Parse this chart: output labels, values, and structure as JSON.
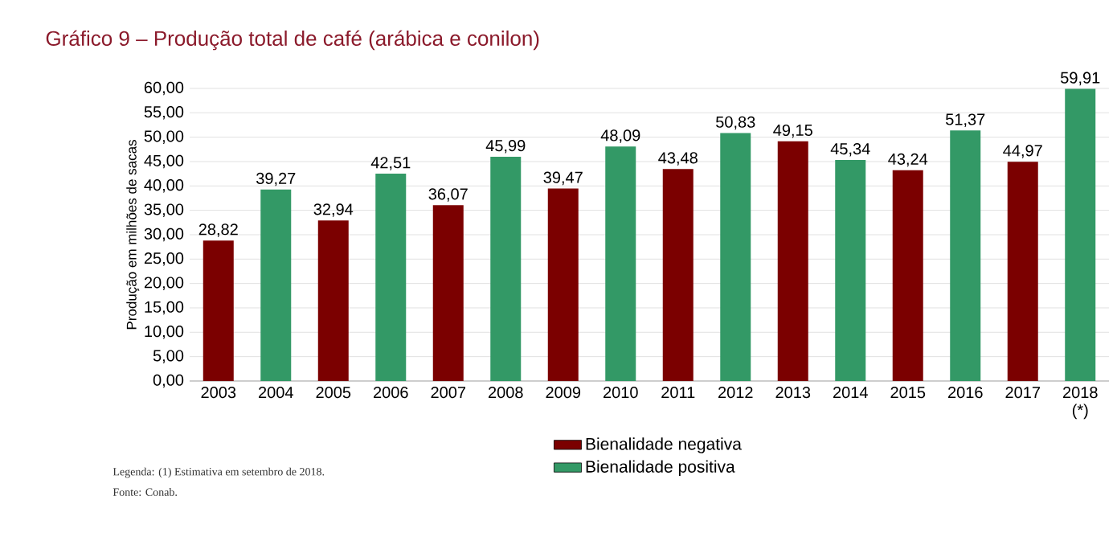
{
  "chart_data": {
    "type": "bar",
    "title": "Gráfico 9 – Produção total de café (arábica e conilon)",
    "ylabel": "Produção em milhões de sacas",
    "categories": [
      "2003",
      "2004",
      "2005",
      "2006",
      "2007",
      "2008",
      "2009",
      "2010",
      "2011",
      "2012",
      "2013",
      "2014",
      "2015",
      "2016",
      "2017",
      "2018 (*)"
    ],
    "series": [
      {
        "name": "Bienalidade negativa",
        "color": "#7b0000",
        "values": [
          28.82,
          null,
          32.94,
          null,
          36.07,
          null,
          39.47,
          null,
          43.48,
          null,
          49.15,
          null,
          43.24,
          null,
          44.97,
          null
        ],
        "value_labels": [
          "28,82",
          null,
          "32,94",
          null,
          "36,07",
          null,
          "39,47",
          null,
          "43,48",
          null,
          "49,15",
          null,
          "43,24",
          null,
          "44,97",
          null
        ]
      },
      {
        "name": "Bienalidade positiva",
        "color": "#339966",
        "values": [
          null,
          39.27,
          null,
          42.51,
          null,
          45.99,
          null,
          48.09,
          null,
          50.83,
          null,
          45.34,
          null,
          51.37,
          null,
          59.91
        ],
        "value_labels": [
          null,
          "39,27",
          null,
          "42,51",
          null,
          "45,99",
          null,
          "48,09",
          null,
          "50,83",
          null,
          "45,34",
          null,
          "51,37",
          null,
          "59,91"
        ]
      }
    ],
    "ylim": [
      0,
      60
    ],
    "yticks": [
      {
        "value": 0,
        "label": "0,00"
      },
      {
        "value": 5,
        "label": "5,00"
      },
      {
        "value": 10,
        "label": "10,00"
      },
      {
        "value": 15,
        "label": "15,00"
      },
      {
        "value": 20,
        "label": "20,00"
      },
      {
        "value": 25,
        "label": "25,00"
      },
      {
        "value": 30,
        "label": "30,00"
      },
      {
        "value": 35,
        "label": "35,00"
      },
      {
        "value": 40,
        "label": "40,00"
      },
      {
        "value": 45,
        "label": "45,00"
      },
      {
        "value": 50,
        "label": "50,00"
      },
      {
        "value": 55,
        "label": "55,00"
      },
      {
        "value": 60,
        "label": "60,00"
      }
    ],
    "grid": "y",
    "legend": "bottom",
    "annotations": [
      "Legenda: (1) Estimativa em setembro de 2018.",
      "Fonte: Conab."
    ]
  }
}
